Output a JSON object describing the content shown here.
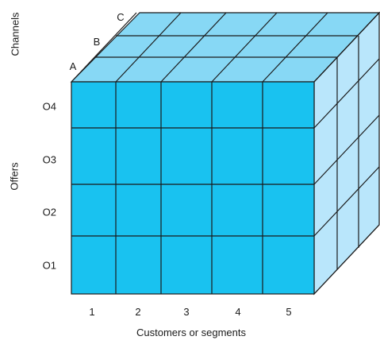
{
  "axes": {
    "channels_label": "Channels",
    "offers_label": "Offers",
    "customers_label": "Customers or segments"
  },
  "channel_layers": [
    "A",
    "B",
    "C"
  ],
  "offer_rows": [
    "O4",
    "O3",
    "O2",
    "O1"
  ],
  "customer_columns": [
    "1",
    "2",
    "3",
    "4",
    "5"
  ],
  "colors": {
    "front": "#19c2f0",
    "top": "#87d8f5",
    "side": "#b9e6fb",
    "line": "#1a1a1a"
  }
}
